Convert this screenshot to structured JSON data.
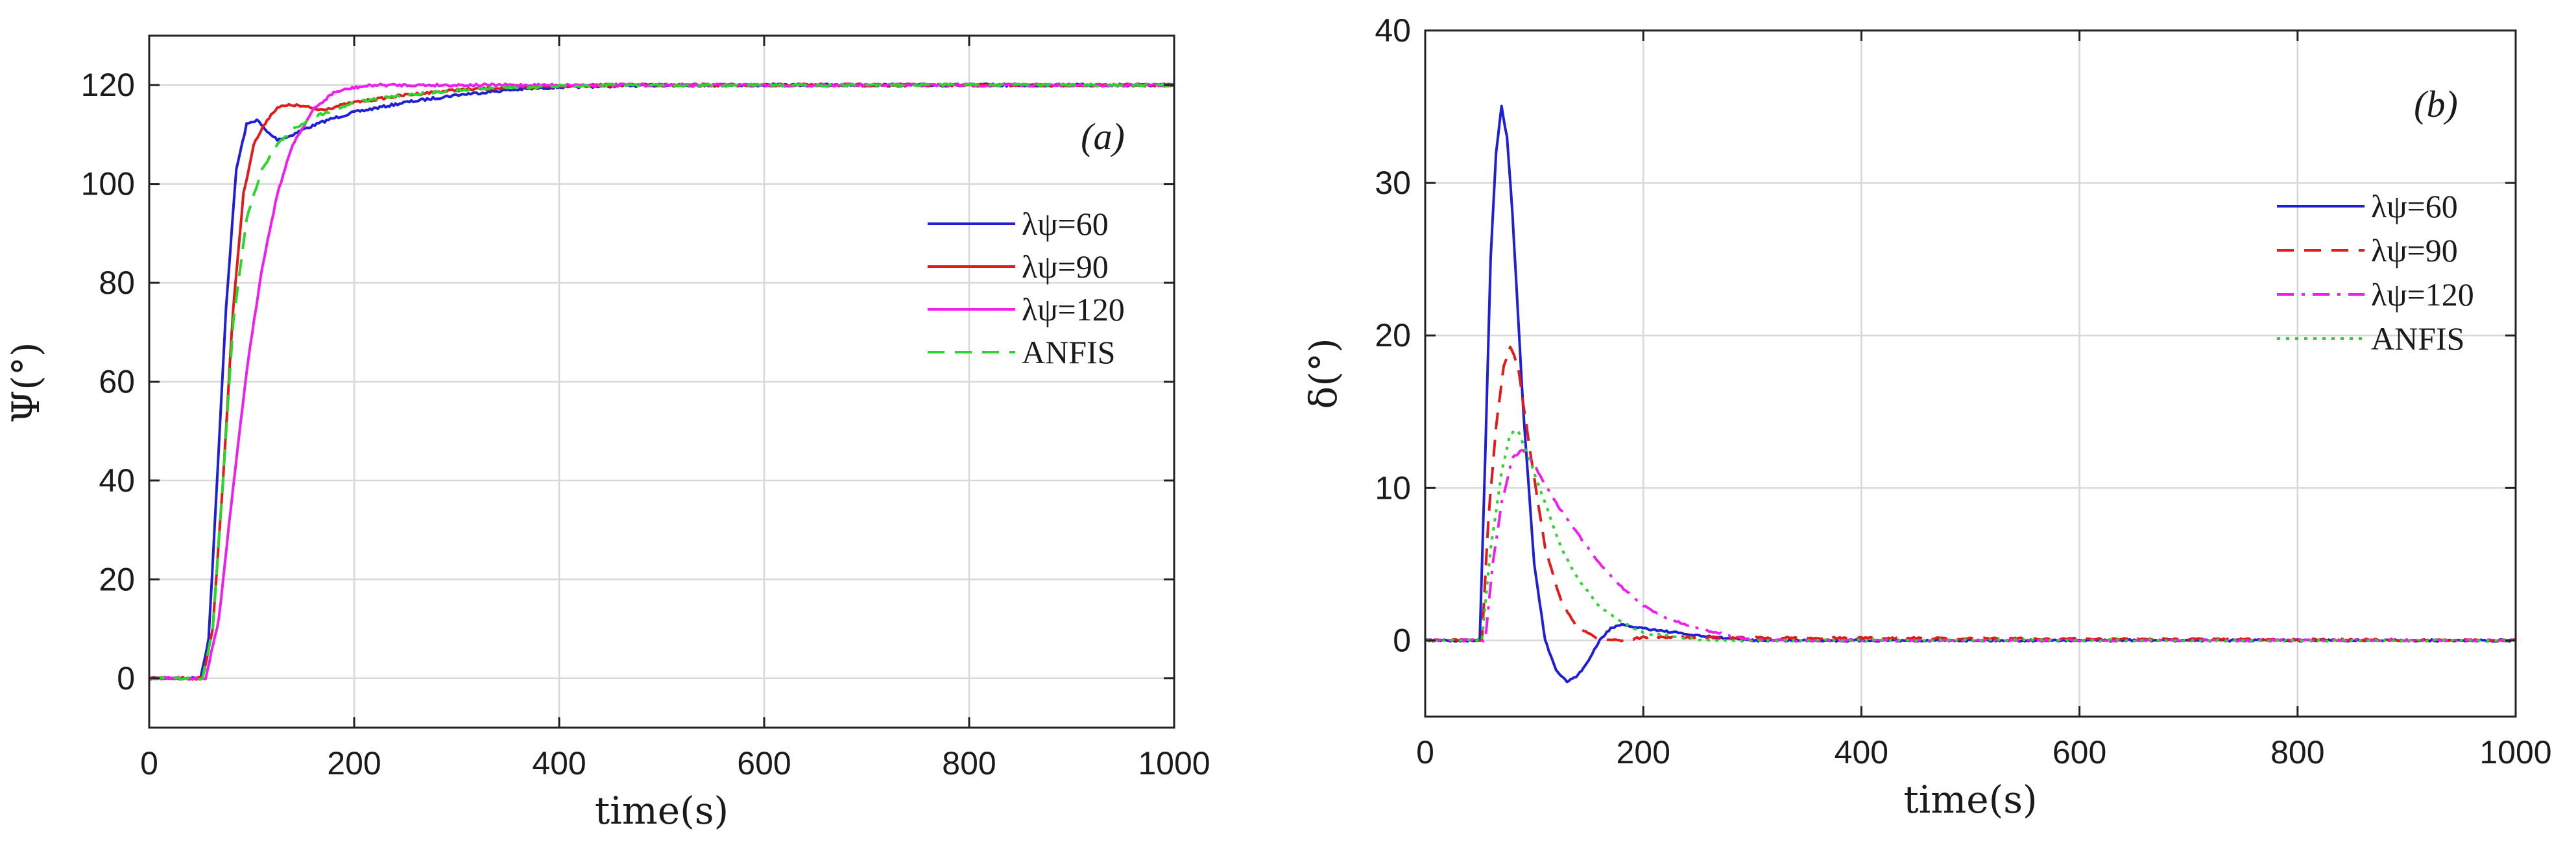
{
  "chart_data": [
    {
      "type": "line",
      "panel": "(a)",
      "xlabel": "time(s)",
      "ylabel": "Ψ(°)",
      "xlim": [
        0,
        1000
      ],
      "ylim": [
        -10,
        130
      ],
      "xticks": [
        0,
        200,
        400,
        600,
        800,
        1000
      ],
      "yticks": [
        0,
        20,
        40,
        60,
        80,
        100,
        120
      ],
      "grid": true,
      "legend_position": "right",
      "series": [
        {
          "name": "λψ=60",
          "color": "#1f1fd6",
          "dash": "solid",
          "x": [
            0,
            50,
            58,
            65,
            75,
            85,
            95,
            105,
            115,
            125,
            135,
            150,
            175,
            200,
            250,
            300,
            350,
            400,
            450,
            500,
            1000
          ],
          "y": [
            0,
            0,
            8,
            35,
            75,
            103,
            112,
            113,
            110.5,
            109,
            109.5,
            111,
            113,
            114.5,
            116.5,
            118,
            119,
            119.6,
            119.8,
            120,
            120
          ]
        },
        {
          "name": "λψ=90",
          "color": "#e11a1a",
          "dash": "solid",
          "x": [
            0,
            52,
            62,
            72,
            82,
            92,
            102,
            115,
            125,
            140,
            155,
            165,
            175,
            200,
            250,
            300,
            350,
            400,
            450,
            500,
            1000
          ],
          "y": [
            0,
            0,
            10,
            40,
            75,
            98,
            108,
            113,
            115.5,
            116,
            115.5,
            115,
            115.3,
            116.5,
            118,
            119,
            119.5,
            119.8,
            120,
            120,
            120
          ]
        },
        {
          "name": "λψ=120",
          "color": "#ee1fee",
          "dash": "solid",
          "x": [
            0,
            55,
            68,
            80,
            95,
            110,
            125,
            140,
            160,
            180,
            200,
            220,
            250,
            300,
            1000
          ],
          "y": [
            0,
            0,
            12,
            35,
            62,
            83,
            98,
            108,
            115,
            118.5,
            119.5,
            120,
            120,
            120,
            120
          ]
        },
        {
          "name": "ANFIS",
          "color": "#2bd62b",
          "dash": "dashed",
          "x": [
            0,
            52,
            62,
            72,
            82,
            95,
            110,
            125,
            140,
            160,
            180,
            200,
            250,
            300,
            350,
            400,
            450,
            1000
          ],
          "y": [
            0,
            0,
            10,
            40,
            72,
            93,
            103,
            108,
            111,
            113.5,
            115,
            116.5,
            118,
            119,
            119.5,
            119.8,
            120,
            120
          ]
        }
      ]
    },
    {
      "type": "line",
      "panel": "(b)",
      "xlabel": "time(s)",
      "ylabel": "δ(°)",
      "xlim": [
        0,
        1000
      ],
      "ylim": [
        -5,
        40
      ],
      "xticks": [
        0,
        200,
        400,
        600,
        800,
        1000
      ],
      "yticks": [
        0,
        10,
        20,
        30,
        40
      ],
      "grid": true,
      "legend_position": "right",
      "series": [
        {
          "name": "λψ=60",
          "color": "#1f1fd6",
          "dash": "solid",
          "x": [
            0,
            50,
            55,
            60,
            65,
            70,
            75,
            80,
            90,
            100,
            110,
            120,
            130,
            140,
            150,
            160,
            170,
            180,
            200,
            250,
            300,
            1000
          ],
          "y": [
            0,
            0,
            12,
            25,
            32,
            35,
            33,
            28,
            15,
            5,
            0,
            -2,
            -2.7,
            -2.3,
            -1.3,
            0,
            0.8,
            1,
            0.8,
            0.3,
            0,
            0
          ]
        },
        {
          "name": "λψ=90",
          "color": "#e11a1a",
          "dash": "dashed",
          "x": [
            0,
            52,
            58,
            65,
            72,
            78,
            85,
            95,
            110,
            125,
            140,
            160,
            180,
            200,
            1000
          ],
          "y": [
            0,
            0,
            8,
            14,
            18,
            19.3,
            18,
            13,
            6,
            2.5,
            0.8,
            0.1,
            0,
            0.2,
            0
          ]
        },
        {
          "name": "λψ=120",
          "color": "#ee1fee",
          "dash": "dashdot",
          "x": [
            0,
            55,
            62,
            70,
            80,
            90,
            100,
            120,
            140,
            160,
            180,
            200,
            220,
            250,
            280,
            300,
            1000
          ],
          "y": [
            0,
            0,
            5,
            9,
            12,
            12.5,
            11.5,
            9,
            7,
            5,
            3.5,
            2.3,
            1.5,
            0.8,
            0.3,
            0,
            0
          ]
        },
        {
          "name": "ANFIS",
          "color": "#2bd62b",
          "dash": "dotted",
          "x": [
            0,
            52,
            60,
            70,
            78,
            85,
            95,
            110,
            125,
            140,
            160,
            180,
            200,
            230,
            260,
            1000
          ],
          "y": [
            0,
            0,
            6,
            11,
            13.6,
            13.8,
            12,
            9,
            6,
            4,
            2.2,
            1.2,
            0.5,
            0.2,
            0,
            0
          ]
        }
      ]
    }
  ]
}
